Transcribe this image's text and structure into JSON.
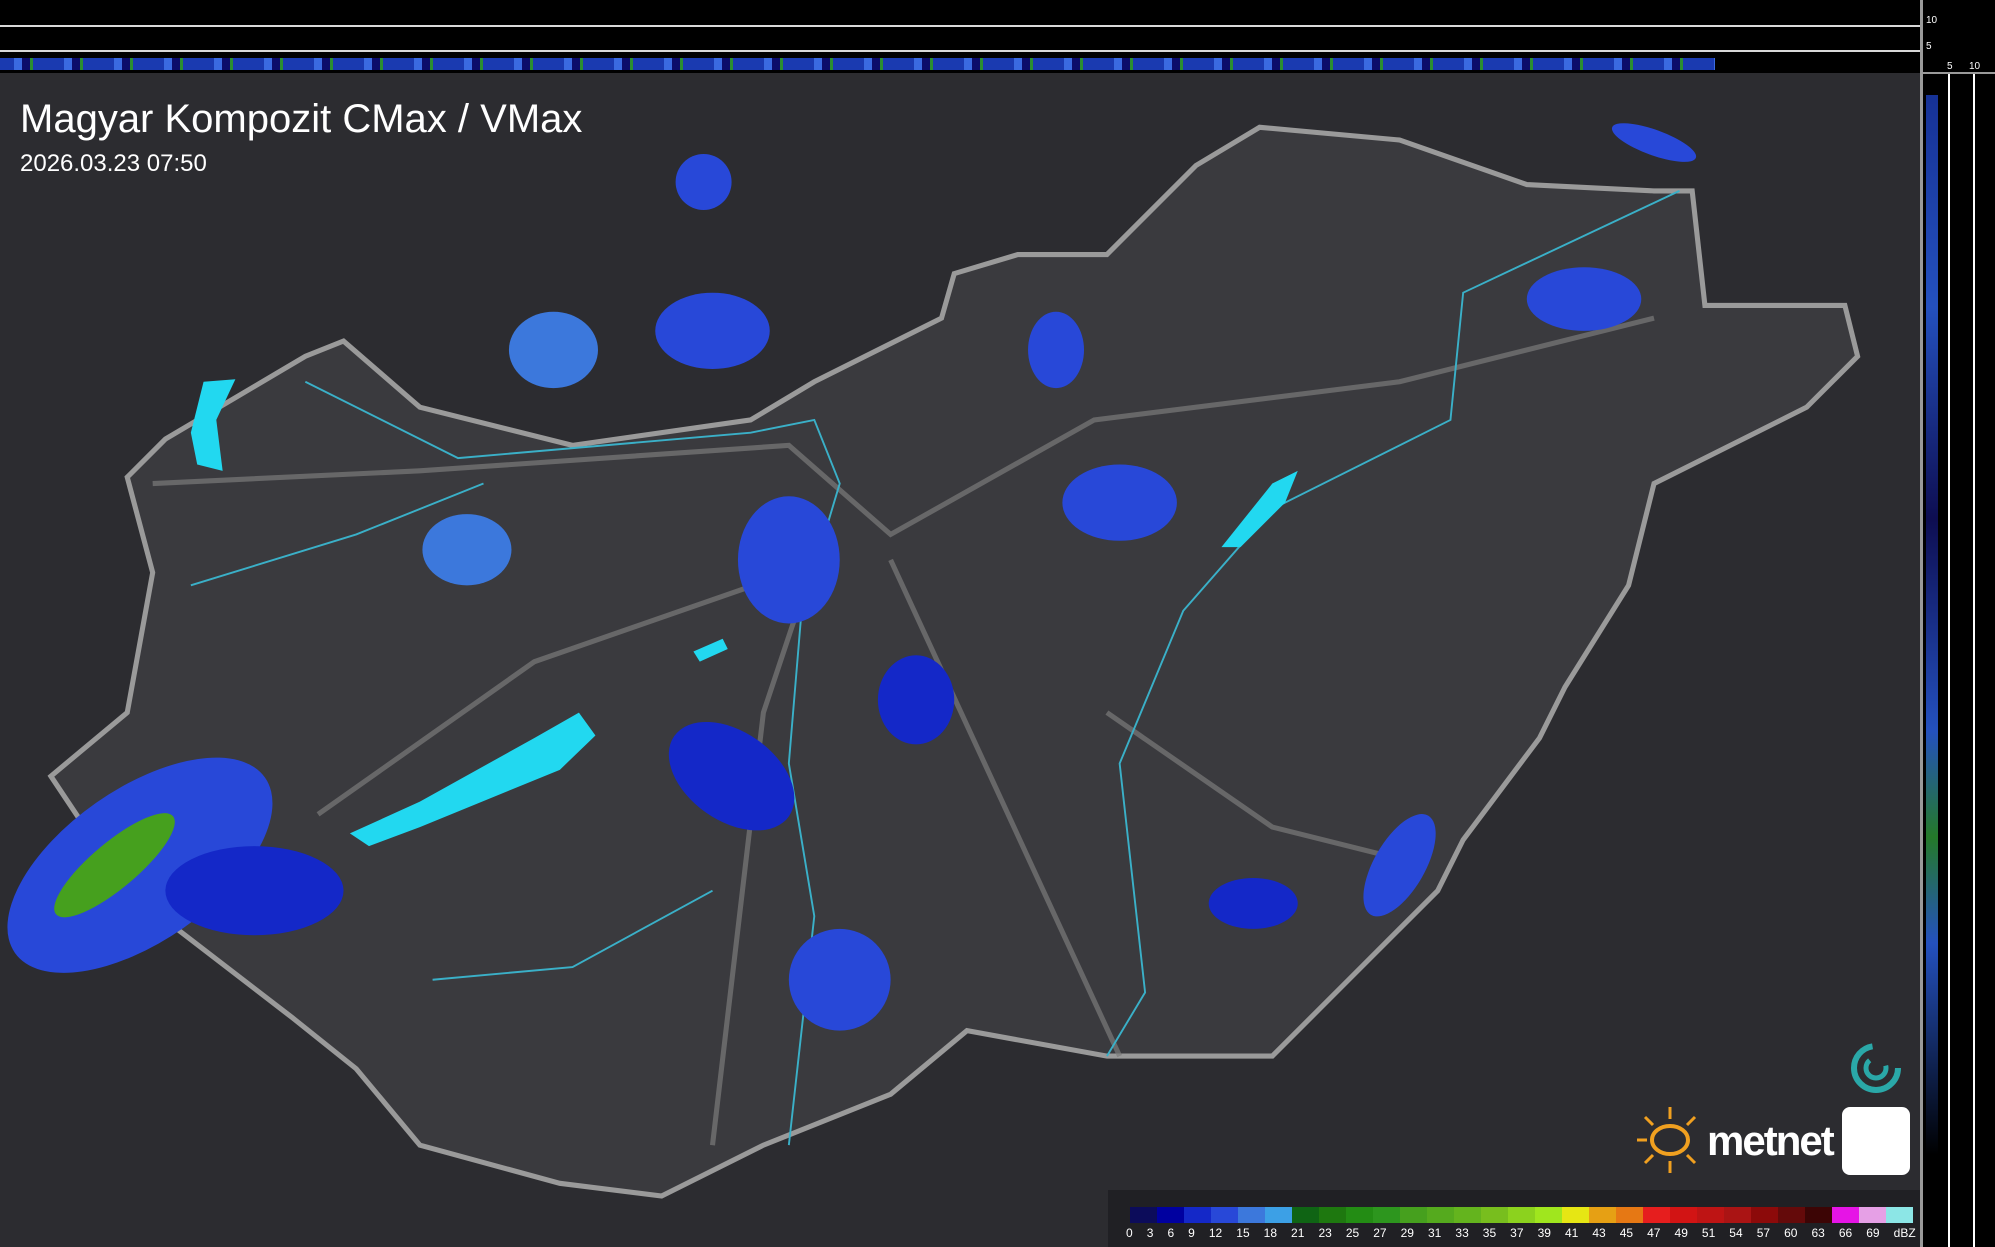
{
  "header": {
    "title": "Magyar Kompozit CMax / VMax",
    "timestamp": "2026.03.23 07:50"
  },
  "side_scale": {
    "top_labels": [
      "10",
      "5"
    ],
    "side_labels": [
      "5",
      "10"
    ]
  },
  "logo": {
    "text": "metnet",
    "sun_color": "#f0a020"
  },
  "legend": {
    "unit": "dBZ",
    "labels": [
      "0",
      "3",
      "6",
      "9",
      "12",
      "15",
      "18",
      "21",
      "23",
      "25",
      "27",
      "29",
      "31",
      "33",
      "35",
      "37",
      "39",
      "41",
      "43",
      "45",
      "47",
      "49",
      "51",
      "54",
      "57",
      "60",
      "63",
      "66",
      "69"
    ],
    "colors": [
      "#0c0c5a",
      "#0000a0",
      "#1428c8",
      "#2848d8",
      "#3c78dc",
      "#3ca0e6",
      "#0f6414",
      "#1e780f",
      "#238c14",
      "#2d961e",
      "#46a01e",
      "#55aa1e",
      "#64b41e",
      "#78be1e",
      "#8cd21e",
      "#a0e61e",
      "#e6e614",
      "#e6a014",
      "#e67814",
      "#e61e1e",
      "#d21414",
      "#be1414",
      "#aa1414",
      "#8c0a0a",
      "#640a0a",
      "#3c0505",
      "#e614e6",
      "#e6a0e6",
      "#8ce6e6"
    ]
  },
  "colors": {
    "border": "#9a9a9a",
    "rivers": "#3ab0c8",
    "lakes": "#22d8f0",
    "rain_light": "#2848d8",
    "rain_mid": "#3c78dc",
    "rain_heavy": "#46a01e"
  }
}
